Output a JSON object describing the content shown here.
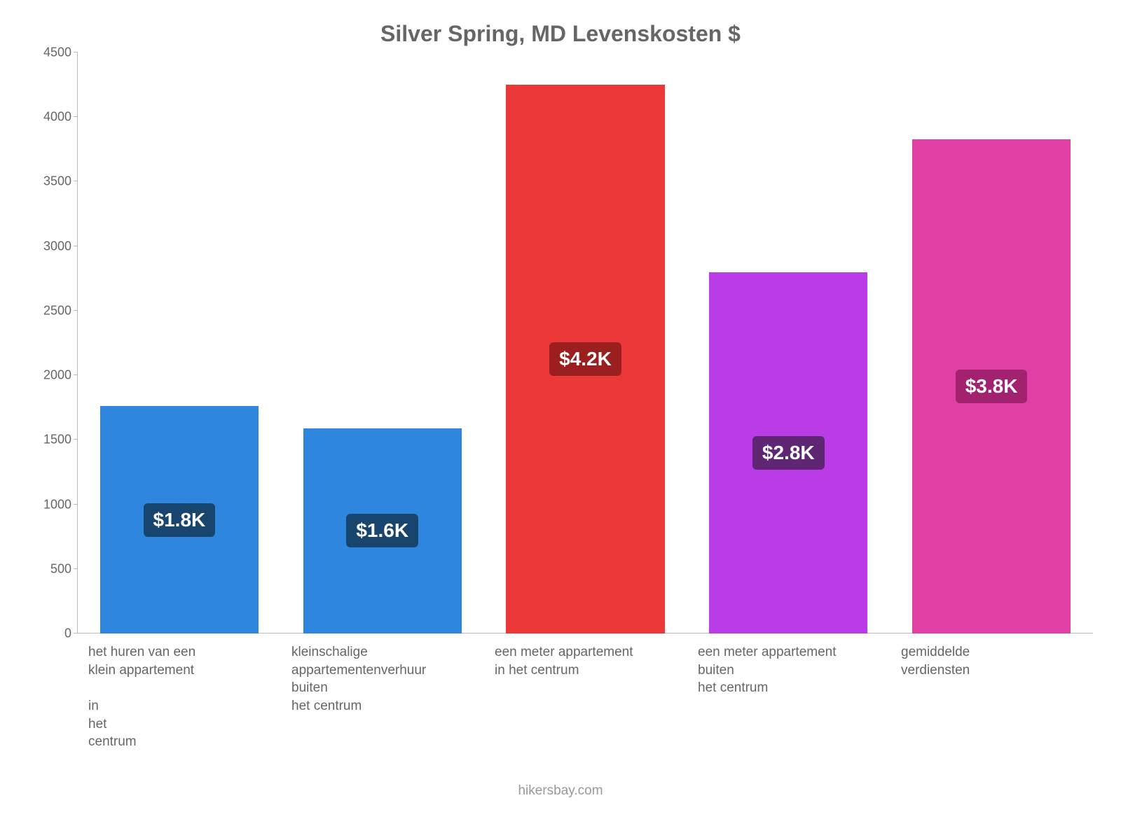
{
  "chart": {
    "type": "bar",
    "title": "Silver Spring, MD Levenskosten $",
    "title_fontsize": 32,
    "title_color": "#666666",
    "background_color": "#ffffff",
    "axis_color": "#bbbbbb",
    "tick_label_color": "#666666",
    "tick_label_fontsize": 18,
    "x_label_fontsize": 19,
    "x_label_color": "#666666",
    "ylim": [
      0,
      4500
    ],
    "ytick_step": 500,
    "yticks": [
      0,
      500,
      1000,
      1500,
      2000,
      2500,
      3000,
      3500,
      4000,
      4500
    ],
    "bar_width_pct": 78,
    "bars": [
      {
        "value": 1760,
        "display": "$1.8K",
        "color": "#2e86de",
        "badge_bg": "#17456e",
        "label": "het huren van een\nklein appartement\n\nin\nhet\ncentrum"
      },
      {
        "value": 1590,
        "display": "$1.6K",
        "color": "#2e86de",
        "badge_bg": "#17456e",
        "label": "kleinschalige\nappartementenverhuur\nbuiten\nhet centrum"
      },
      {
        "value": 4250,
        "display": "$4.2K",
        "color": "#ec3838",
        "badge_bg": "#9c1f1f",
        "label": "een meter appartement\nin het centrum"
      },
      {
        "value": 2800,
        "display": "$2.8K",
        "color": "#b93ce6",
        "badge_bg": "#5e2673",
        "label": "een meter appartement\nbuiten\nhet centrum"
      },
      {
        "value": 3830,
        "display": "$3.8K",
        "color": "#e03fa3",
        "badge_bg": "#a22270",
        "label": "gemiddelde\nverdiensten"
      }
    ],
    "badge_fontsize": 28,
    "badge_text_color": "#ffffff",
    "footer": "hikersbay.com",
    "footer_color": "#999999",
    "footer_fontsize": 19
  }
}
